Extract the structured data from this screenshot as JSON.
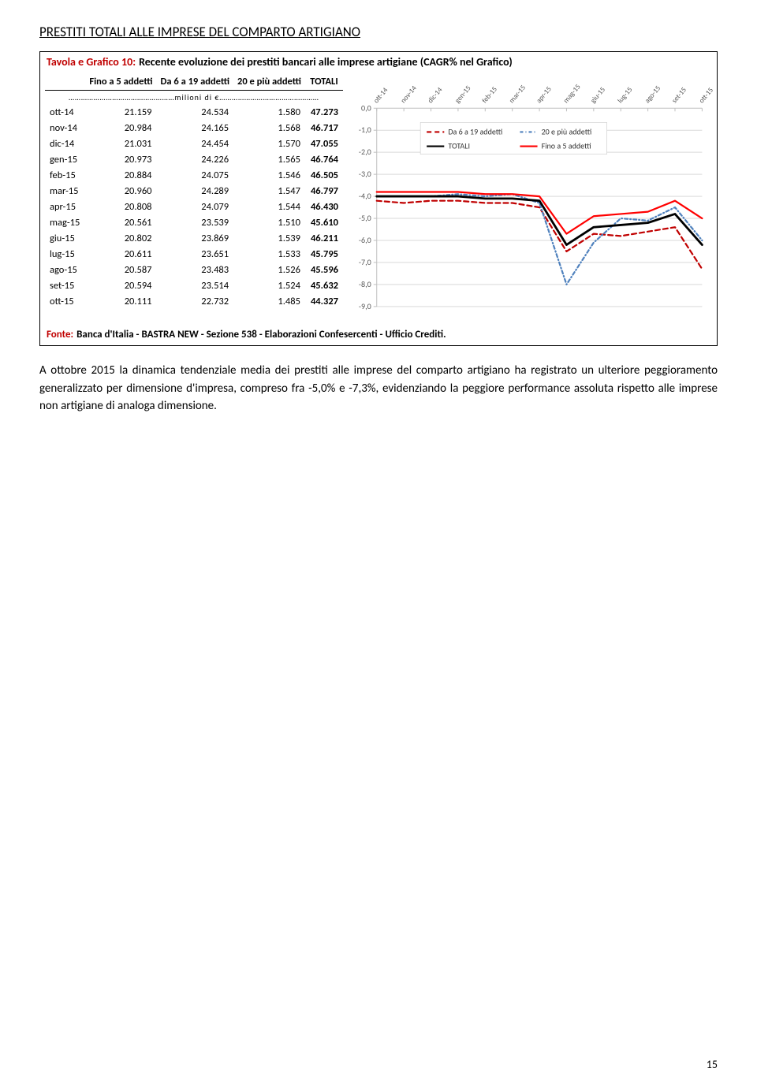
{
  "section_title": "PRESTITI TOTALI ALLE IMPRESE DEL COMPARTO ARTIGIANO",
  "panel_title_red": "Tavola e Grafico 10:",
  "panel_title_black": "Recente evoluzione dei prestiti bancari alle imprese artigiane (CAGR% nel Grafico)",
  "table": {
    "headers": [
      "",
      "Fino a 5 addetti",
      "Da 6 a 19 addetti",
      "20 e più addetti",
      "TOTALI"
    ],
    "units_label": "……………………………………………milioni di €…………………………………………",
    "rows": [
      [
        "ott-14",
        "21.159",
        "24.534",
        "1.580",
        "47.273"
      ],
      [
        "nov-14",
        "20.984",
        "24.165",
        "1.568",
        "46.717"
      ],
      [
        "dic-14",
        "21.031",
        "24.454",
        "1.570",
        "47.055"
      ],
      [
        "gen-15",
        "20.973",
        "24.226",
        "1.565",
        "46.764"
      ],
      [
        "feb-15",
        "20.884",
        "24.075",
        "1.546",
        "46.505"
      ],
      [
        "mar-15",
        "20.960",
        "24.289",
        "1.547",
        "46.797"
      ],
      [
        "apr-15",
        "20.808",
        "24.079",
        "1.544",
        "46.430"
      ],
      [
        "mag-15",
        "20.561",
        "23.539",
        "1.510",
        "45.610"
      ],
      [
        "giu-15",
        "20.802",
        "23.869",
        "1.539",
        "46.211"
      ],
      [
        "lug-15",
        "20.611",
        "23.651",
        "1.533",
        "45.795"
      ],
      [
        "ago-15",
        "20.587",
        "23.483",
        "1.526",
        "45.596"
      ],
      [
        "set-15",
        "20.594",
        "23.514",
        "1.524",
        "45.632"
      ],
      [
        "ott-15",
        "20.111",
        "22.732",
        "1.485",
        "44.327"
      ]
    ]
  },
  "chart": {
    "x_labels": [
      "ott-14",
      "nov-14",
      "dic-14",
      "gen-15",
      "feb-15",
      "mar-15",
      "apr-15",
      "mag-15",
      "giu-15",
      "lug-15",
      "ago-15",
      "set-15",
      "ott-15"
    ],
    "y_min": -9.0,
    "y_max": 0.0,
    "y_step": 1.0,
    "series": [
      {
        "name": "Da 6 a 19 addetti",
        "color": "#c00000",
        "dash": "6,4",
        "width": 2.2,
        "values": [
          -4.2,
          -4.3,
          -4.2,
          -4.2,
          -4.3,
          -4.3,
          -4.5,
          -6.5,
          -5.7,
          -5.8,
          -5.6,
          -5.4,
          -7.3
        ]
      },
      {
        "name": "20 e più addetti",
        "color": "#4f81bd",
        "dash": "4,3,1,3",
        "width": 2.2,
        "values": [
          -4.0,
          -4.0,
          -4.0,
          -3.9,
          -4.0,
          -3.9,
          -4.3,
          -8.0,
          -6.1,
          -5.0,
          -5.1,
          -4.5,
          -6.0
        ]
      },
      {
        "name": "TOTALI",
        "color": "#000000",
        "dash": "",
        "width": 2.8,
        "values": [
          -4.0,
          -4.0,
          -4.0,
          -4.0,
          -4.1,
          -4.1,
          -4.2,
          -6.2,
          -5.4,
          -5.3,
          -5.2,
          -4.8,
          -6.2
        ]
      },
      {
        "name": "Fino a 5 addetti",
        "color": "#ff0000",
        "dash": "",
        "width": 2.2,
        "values": [
          -3.8,
          -3.8,
          -3.8,
          -3.8,
          -3.9,
          -3.9,
          -4.0,
          -5.7,
          -4.9,
          -4.8,
          -4.7,
          -4.2,
          -5.0
        ]
      }
    ],
    "legend": [
      {
        "label": "Da 6 a 19 addetti",
        "color": "#c00000",
        "dash": "6,4"
      },
      {
        "label": "20 e più addetti",
        "color": "#4f81bd",
        "dash": "4,3,1,3"
      },
      {
        "label": "TOTALI",
        "color": "#000000",
        "dash": ""
      },
      {
        "label": "Fino a 5 addetti",
        "color": "#ff0000",
        "dash": ""
      }
    ]
  },
  "source_red": "Fonte:",
  "source_black": "Banca d'Italia - BASTRA NEW - Sezione 538 - Elaborazioni Confesercenti - Ufficio Crediti.",
  "body_text": "A ottobre 2015 la dinamica tendenziale media dei prestiti alle imprese del comparto artigiano ha registrato un ulteriore peggioramento generalizzato per dimensione d'impresa, compreso fra -5,0% e -7,3%, evidenziando la peggiore performance assoluta rispetto alle imprese non artigiane di analoga dimensione.",
  "page_number": "15"
}
